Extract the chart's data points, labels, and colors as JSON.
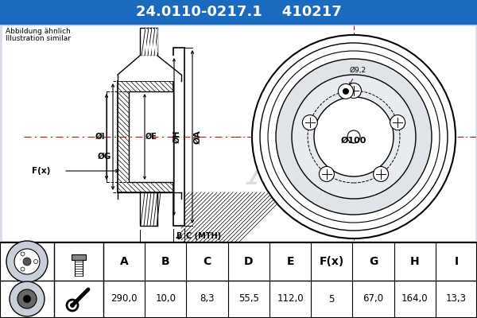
{
  "title_part1": "24.0110-0217.1",
  "title_part2": "410217",
  "subtitle1": "Abbildung ähnlich",
  "subtitle2": "Illustration similar",
  "header_bg": "#1a6abf",
  "header_text_color": "#ffffff",
  "table_cols": [
    "A",
    "B",
    "C",
    "D",
    "E",
    "F(x)",
    "G",
    "H",
    "I"
  ],
  "table_values": [
    "290,0",
    "10,0",
    "8,3",
    "55,5",
    "112,0",
    "5",
    "67,0",
    "164,0",
    "13,3"
  ],
  "bolt_circle_dia": "Ø9,2",
  "center_dia": "Ø100",
  "bg_color": "#d4dce8",
  "inner_bg": "#e8edf2"
}
